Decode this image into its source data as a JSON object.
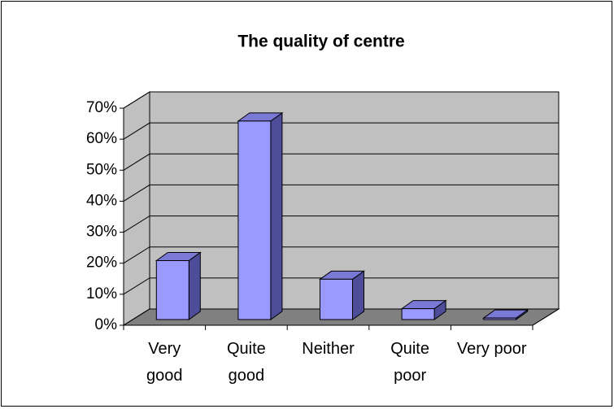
{
  "chart_data": {
    "type": "bar3d",
    "title": "The quality of centre",
    "categories": [
      "Very good",
      "Quite good",
      "Neither",
      "Quite poor",
      "Very poor"
    ],
    "values": [
      19,
      64,
      13,
      3.5,
      0.5
    ],
    "color": "#9999ff",
    "ylim": [
      0,
      70
    ],
    "yticks": [
      {
        "value": 0,
        "label": "0%"
      },
      {
        "value": 10,
        "label": "10%"
      },
      {
        "value": 20,
        "label": "20%"
      },
      {
        "value": 30,
        "label": "30%"
      },
      {
        "value": 40,
        "label": "40%"
      },
      {
        "value": 50,
        "label": "50%"
      },
      {
        "value": 60,
        "label": "60%"
      },
      {
        "value": 70,
        "label": "70%"
      }
    ],
    "grid": true
  }
}
